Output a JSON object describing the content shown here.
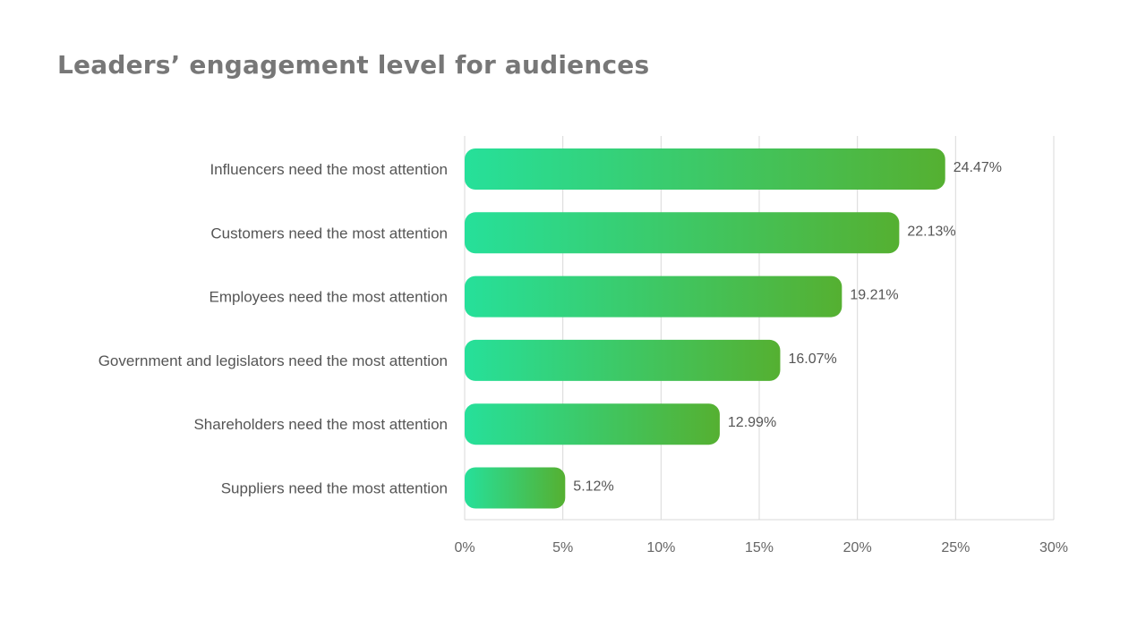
{
  "title": "Leaders’ engagement level for audiences",
  "colors": {
    "bar_start": "#26e09a",
    "bar_end": "#55b031",
    "text": "#555555",
    "title": "#777777",
    "grid": "#d9d9d9"
  },
  "chart_data": {
    "type": "bar",
    "orientation": "horizontal",
    "categories": [
      "Influencers need the most attention",
      "Customers need the most attention",
      "Employees need the most attention",
      "Government and legislators need the most attention",
      "Shareholders need the most attention",
      "Suppliers need the most attention"
    ],
    "values": [
      24.47,
      22.13,
      19.21,
      16.07,
      12.99,
      5.12
    ],
    "value_labels": [
      "24.47%",
      "22.13%",
      "19.21%",
      "16.07%",
      "12.99%",
      "5.12%"
    ],
    "xlim": [
      0,
      30
    ],
    "x_ticks": [
      0,
      5,
      10,
      15,
      20,
      25,
      30
    ],
    "x_tick_labels": [
      "0%",
      "5%",
      "10%",
      "15%",
      "20%",
      "25%",
      "30%"
    ],
    "grid": true,
    "legend": "none"
  }
}
